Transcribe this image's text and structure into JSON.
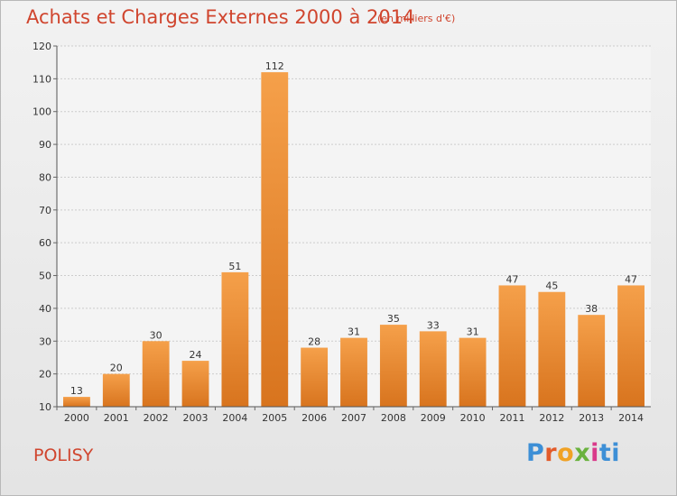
{
  "page": {
    "title": "Achats et Charges Externes 2000 à 2014",
    "subtitle": "(en milliers d'€)",
    "place": "POLISY",
    "logo": {
      "name": "Proxiti",
      "parts": [
        "P",
        "r",
        "o",
        "x",
        "i",
        "ti"
      ]
    }
  },
  "chart_data": {
    "type": "bar",
    "title": "Achats et Charges Externes 2000 à 2014",
    "subtitle": "(en milliers d'€)",
    "xlabel": "",
    "ylabel": "",
    "categories": [
      "2000",
      "2001",
      "2002",
      "2003",
      "2004",
      "2005",
      "2006",
      "2007",
      "2008",
      "2009",
      "2010",
      "2011",
      "2012",
      "2013",
      "2014"
    ],
    "values": [
      13,
      20,
      30,
      24,
      51,
      112,
      28,
      31,
      35,
      33,
      31,
      47,
      45,
      38,
      47
    ],
    "ylim": [
      10,
      120
    ],
    "yticks": [
      10,
      20,
      30,
      40,
      50,
      60,
      70,
      80,
      90,
      100,
      110,
      120
    ],
    "grid": true,
    "bar_color": "#f5a04a",
    "bar_color_dark": "#d8741e"
  }
}
